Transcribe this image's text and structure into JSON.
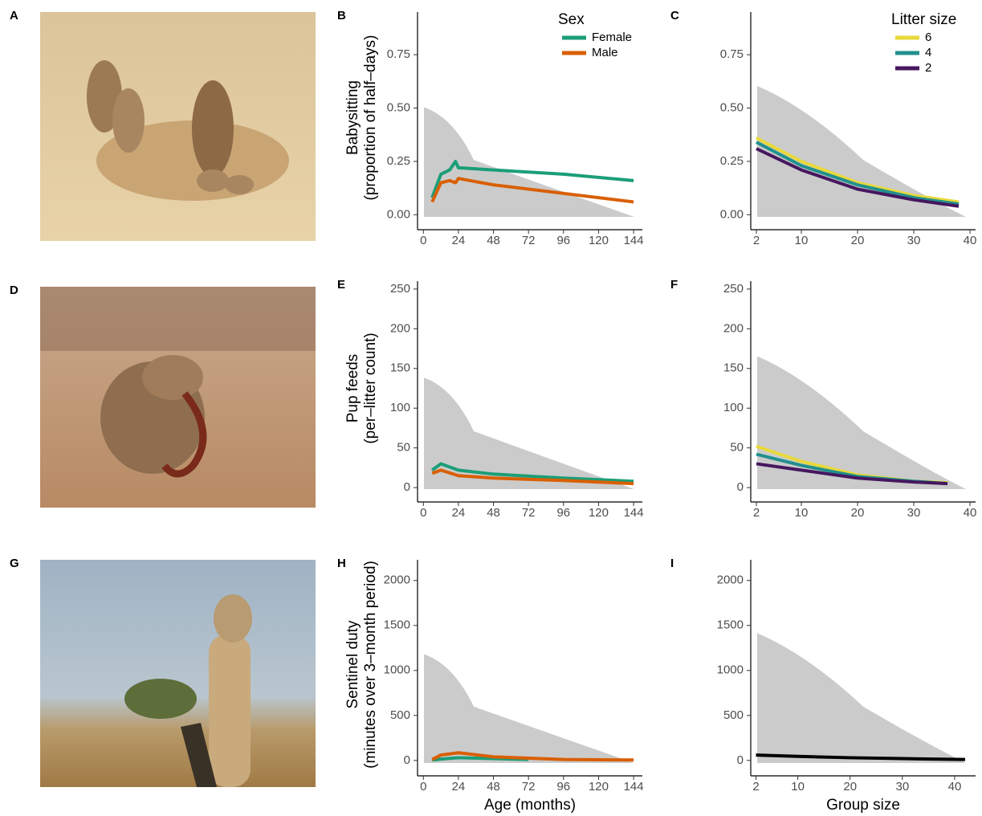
{
  "figure": {
    "photo_panels": [
      "A",
      "D",
      "G"
    ]
  },
  "chart_data": [
    {
      "panel": "B",
      "type": "line",
      "ylabel": [
        "Babysitting",
        "(proportion of half–days)"
      ],
      "xlim": [
        -4,
        150
      ],
      "xticks": [
        0,
        24,
        48,
        72,
        96,
        120,
        144
      ],
      "ylim": [
        -0.04,
        0.95
      ],
      "yticks": [
        {
          "value": 0,
          "label": "0.00"
        },
        {
          "value": 0.25,
          "label": "0.25"
        },
        {
          "value": 0.5,
          "label": "0.50"
        },
        0.75
      ],
      "legend_title": "Sex",
      "legend": "upper right",
      "series": [
        {
          "name": "Female",
          "color": "#1b9e77",
          "x": [
            6,
            12,
            18,
            22,
            24,
            48,
            96,
            144
          ],
          "values": [
            0.08,
            0.19,
            0.21,
            0.25,
            0.22,
            0.21,
            0.19,
            0.16
          ]
        },
        {
          "name": "Male",
          "color": "#d95f02",
          "x": [
            6,
            12,
            18,
            22,
            24,
            48,
            96,
            144
          ],
          "values": [
            0.06,
            0.15,
            0.16,
            0.15,
            0.17,
            0.14,
            0.1,
            0.06
          ]
        }
      ]
    },
    {
      "panel": "C",
      "type": "line",
      "xlim": [
        1,
        41
      ],
      "xticks": [
        2,
        10,
        20,
        30,
        40
      ],
      "ylim": [
        -0.04,
        0.95
      ],
      "yticks": [
        {
          "value": 0,
          "label": "0.00"
        },
        {
          "value": 0.25,
          "label": "0.25"
        },
        {
          "value": 0.5,
          "label": "0.50"
        },
        0.75
      ],
      "legend_title": "Litter size",
      "legend": "upper right",
      "series": [
        {
          "name": "6",
          "color": "#e8d93a",
          "x": [
            2,
            10,
            20,
            30,
            38
          ],
          "values": [
            0.36,
            0.25,
            0.15,
            0.09,
            0.06
          ]
        },
        {
          "name": "4",
          "color": "#21908d",
          "x": [
            2,
            10,
            20,
            30,
            38
          ],
          "values": [
            0.34,
            0.23,
            0.14,
            0.08,
            0.05
          ]
        },
        {
          "name": "2",
          "color": "#46175f",
          "x": [
            2,
            10,
            20,
            30,
            38
          ],
          "values": [
            0.31,
            0.21,
            0.12,
            0.07,
            0.04
          ]
        }
      ]
    },
    {
      "panel": "E",
      "type": "line",
      "ylabel": [
        "Pup feeds",
        "(per–litter count)"
      ],
      "xlim": [
        -4,
        150
      ],
      "xticks": [
        0,
        24,
        48,
        72,
        96,
        120,
        144
      ],
      "ylim": [
        -10,
        260
      ],
      "yticks": [
        0,
        50,
        100,
        150,
        200,
        250
      ],
      "series": [
        {
          "color": "#1b9e77",
          "x": [
            6,
            12,
            24,
            48,
            96,
            144
          ],
          "values": [
            22,
            30,
            22,
            17,
            12,
            8
          ]
        },
        {
          "color": "#d95f02",
          "x": [
            6,
            12,
            24,
            48,
            96,
            144
          ],
          "values": [
            18,
            22,
            15,
            12,
            9,
            5
          ]
        }
      ]
    },
    {
      "panel": "F",
      "type": "line",
      "xlim": [
        1,
        41
      ],
      "xticks": [
        2,
        10,
        20,
        30,
        40
      ],
      "ylim": [
        -10,
        260
      ],
      "yticks": [
        0,
        50,
        100,
        150,
        200,
        250
      ],
      "series": [
        {
          "color": "#e8d93a",
          "x": [
            2,
            10,
            20,
            30,
            36
          ],
          "values": [
            52,
            33,
            16,
            8,
            6
          ]
        },
        {
          "color": "#21908d",
          "x": [
            2,
            10,
            20,
            30,
            36
          ],
          "values": [
            42,
            28,
            14,
            8,
            5
          ]
        },
        {
          "color": "#46175f",
          "x": [
            2,
            10,
            20,
            30,
            36
          ],
          "values": [
            30,
            22,
            12,
            7,
            5
          ]
        }
      ]
    },
    {
      "panel": "H",
      "type": "line",
      "ylabel": [
        "Sentinel duty",
        "(minutes over 3–month period)"
      ],
      "xlabel": "Age (months)",
      "xlim": [
        -4,
        150
      ],
      "xticks": [
        0,
        24,
        48,
        72,
        96,
        120,
        144
      ],
      "ylim": [
        -100,
        2230
      ],
      "yticks": [
        0,
        500,
        1000,
        1500,
        2000
      ],
      "series": [
        {
          "color": "#1b9e77",
          "x": [
            6,
            12,
            24,
            48,
            72
          ],
          "values": [
            5,
            15,
            30,
            20,
            10
          ]
        },
        {
          "color": "#d95f02",
          "x": [
            6,
            12,
            24,
            48,
            96,
            144
          ],
          "values": [
            10,
            60,
            85,
            40,
            10,
            5
          ]
        }
      ]
    },
    {
      "panel": "I",
      "type": "line",
      "xlabel": "Group size",
      "xlim": [
        1,
        44
      ],
      "xticks": [
        2,
        10,
        20,
        30,
        40
      ],
      "ylim": [
        -100,
        2230
      ],
      "yticks": [
        0,
        500,
        1000,
        1500,
        2000
      ],
      "series": [
        {
          "color": "#000000",
          "x": [
            2,
            10,
            20,
            30,
            42
          ],
          "values": [
            60,
            45,
            30,
            20,
            10
          ]
        }
      ]
    }
  ]
}
